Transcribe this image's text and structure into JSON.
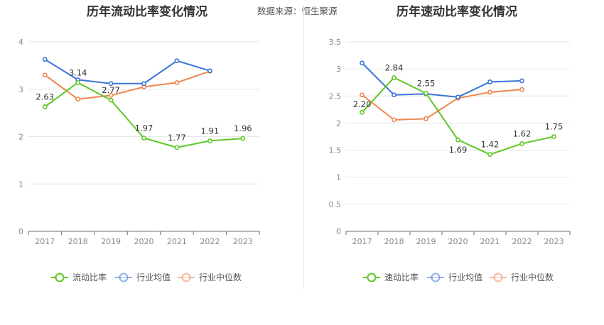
{
  "source_text": "数据来源：恒生聚源",
  "chart_data": [
    {
      "type": "line",
      "title": "历年流动比率变化情况",
      "categories": [
        "2017",
        "2018",
        "2019",
        "2020",
        "2021",
        "2022",
        "2023"
      ],
      "ylim": [
        0,
        4
      ],
      "yticks": [
        "0",
        "1",
        "2",
        "3",
        "4"
      ],
      "grid": true,
      "legend_position": "bottom",
      "series": [
        {
          "name": "流动比率",
          "color": "#5ec726",
          "values": [
            2.63,
            3.14,
            2.77,
            1.97,
            1.77,
            1.91,
            1.96
          ],
          "labels": [
            "2.63",
            "3.14",
            "2.77",
            "1.97",
            "1.77",
            "1.91",
            "1.96"
          ]
        },
        {
          "name": "行业均值",
          "color": "#3a74d9",
          "values": [
            3.63,
            3.2,
            3.12,
            3.12,
            3.6,
            3.39,
            null
          ]
        },
        {
          "name": "行业中位数",
          "color": "#f0864e",
          "values": [
            3.3,
            2.79,
            2.87,
            3.05,
            3.14,
            3.38,
            null
          ]
        }
      ]
    },
    {
      "type": "line",
      "title": "历年速动比率变化情况",
      "categories": [
        "2017",
        "2018",
        "2019",
        "2020",
        "2021",
        "2022",
        "2023"
      ],
      "ylim": [
        0,
        3.5
      ],
      "yticks": [
        "0",
        "0.5",
        "1",
        "1.5",
        "2",
        "2.5",
        "3",
        "3.5"
      ],
      "grid": true,
      "legend_position": "bottom",
      "series": [
        {
          "name": "速动比率",
          "color": "#5ec726",
          "values": [
            2.2,
            2.84,
            2.55,
            1.69,
            1.42,
            1.62,
            1.75
          ],
          "labels": [
            "2.20",
            "2.84",
            "2.55",
            "1.69",
            "1.42",
            "1.62",
            "1.75"
          ]
        },
        {
          "name": "行业均值",
          "color": "#3a74d9",
          "values": [
            3.11,
            2.52,
            2.54,
            2.48,
            2.76,
            2.78,
            null
          ]
        },
        {
          "name": "行业中位数",
          "color": "#f0864e",
          "values": [
            2.52,
            2.06,
            2.08,
            2.46,
            2.57,
            2.62,
            null
          ]
        }
      ]
    }
  ]
}
